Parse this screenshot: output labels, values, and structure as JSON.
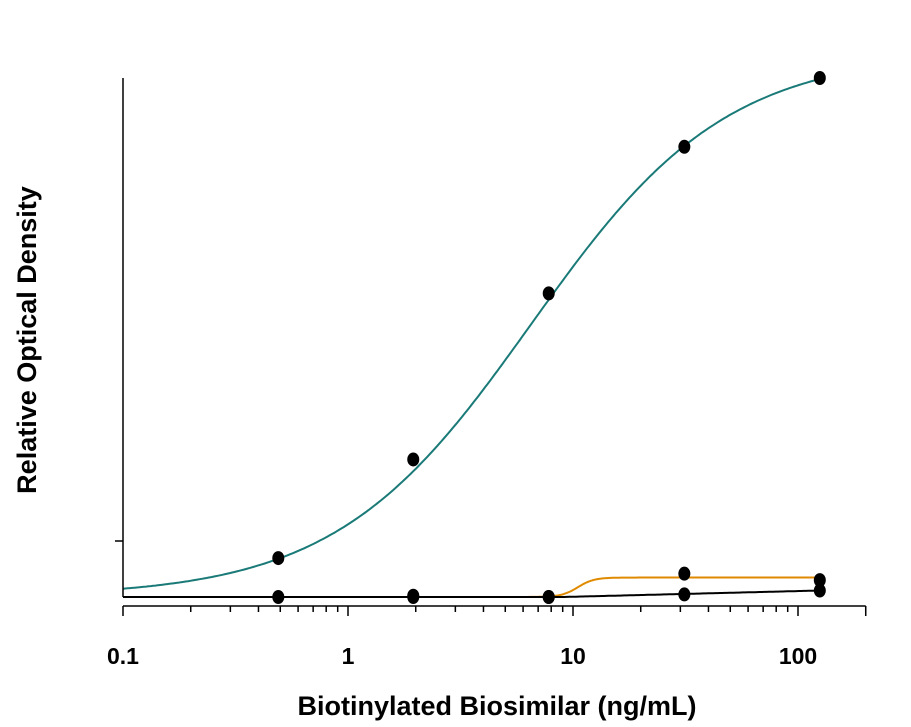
{
  "chart_data": {
    "type": "scatter",
    "title": "",
    "xlabel": "Biotinylated Biosimilar (ng/mL)",
    "ylabel": "Relative Optical Density",
    "x_scale": "log",
    "xlim": [
      0.1,
      200
    ],
    "ylim": [
      0,
      4
    ],
    "x_ticks": [
      "0.1",
      "1",
      "10",
      "100"
    ],
    "y_ticks_labeled": false,
    "grid": false,
    "legend": "none",
    "series": [
      {
        "color": "#1a7a78",
        "curve": "4-parameter logistic fit",
        "x": [
          0.49,
          1.95,
          7.8,
          31.25,
          125
        ],
        "y": [
          0.3,
          1.06,
          2.34,
          3.47,
          4.0
        ]
      },
      {
        "color": "#e08a00",
        "curve": "fit",
        "x": [
          1.95,
          7.8,
          31.25,
          125
        ],
        "y": [
          0.01,
          0.0,
          0.18,
          0.13
        ]
      },
      {
        "color": "#000000",
        "curve": "fit",
        "x": [
          0.49,
          1.95,
          7.8,
          31.25,
          125
        ],
        "y": [
          0.0,
          0.0,
          0.0,
          0.02,
          0.05
        ]
      }
    ],
    "marker_color": "#000000"
  }
}
